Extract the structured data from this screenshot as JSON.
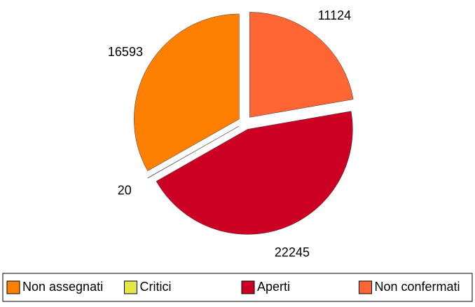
{
  "chart_data": {
    "type": "pie",
    "categories": [
      "Non assegnati",
      "Critici",
      "Aperti",
      "Non confermati"
    ],
    "values": [
      16593,
      20,
      22245,
      11124
    ],
    "colors": [
      "#ff7f00",
      "#e6e645",
      "#cc0022",
      "#ff6633"
    ],
    "start_category": 3,
    "legend": "bottom"
  }
}
